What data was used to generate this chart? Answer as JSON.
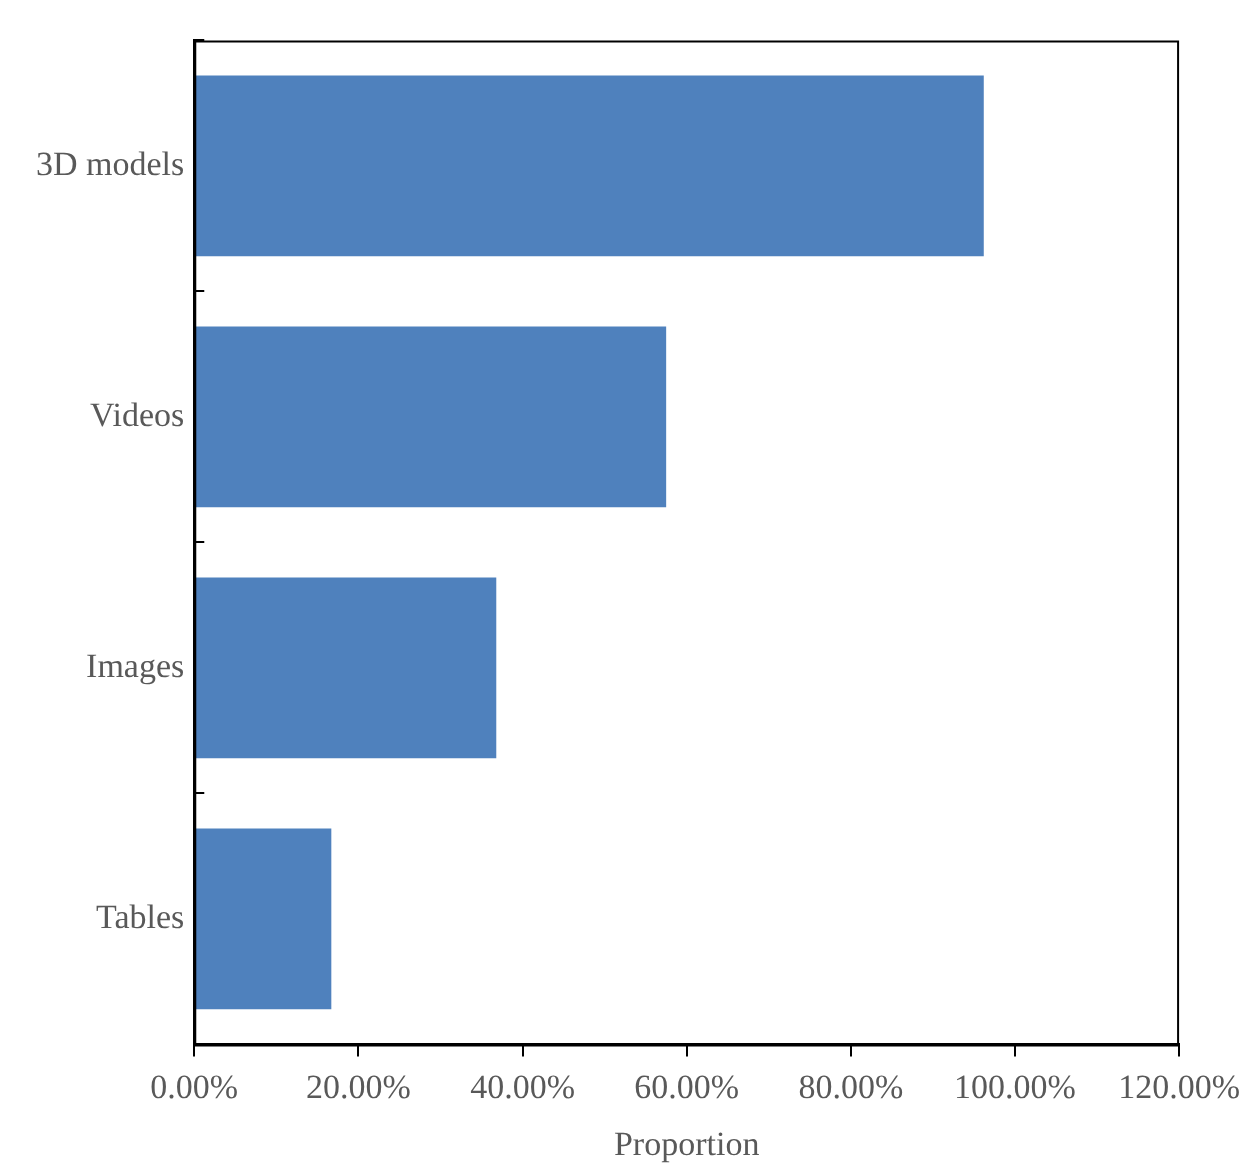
{
  "chart_data": {
    "type": "bar",
    "orientation": "horizontal",
    "xlabel": "Proportion",
    "categories": [
      "3D models",
      "Videos",
      "Images",
      "Tables"
    ],
    "values": [
      96.2,
      57.5,
      36.8,
      16.7
    ],
    "color": "#4f81bd",
    "xlim": [
      0,
      120
    ],
    "xticks": [
      {
        "value": 0,
        "label": "0.00%"
      },
      {
        "value": 20,
        "label": "20.00%"
      },
      {
        "value": 40,
        "label": "40.00%"
      },
      {
        "value": 60,
        "label": "60.00%"
      },
      {
        "value": 80,
        "label": "80.00%"
      },
      {
        "value": 100,
        "label": "100.00%"
      },
      {
        "value": 120,
        "label": "120.00%"
      }
    ],
    "grid": false,
    "legend": false
  }
}
